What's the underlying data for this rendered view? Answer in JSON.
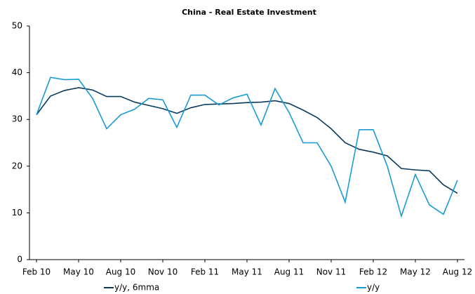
{
  "chart_data": {
    "type": "line",
    "title": "China - Real Estate Investment",
    "categories": [
      "Feb 10",
      null,
      null,
      "May 10",
      null,
      null,
      "Aug 10",
      null,
      null,
      "Nov 10",
      null,
      null,
      "Feb 11",
      null,
      null,
      "May 11",
      null,
      null,
      "Aug 11",
      null,
      null,
      "Nov 11",
      null,
      null,
      "Feb 12",
      null,
      null,
      "May 12",
      null,
      null,
      "Aug 12"
    ],
    "series": [
      {
        "name": "y/y, 6mma",
        "color": "#0b3a5c",
        "values": [
          31,
          35,
          36.2,
          36.8,
          36.3,
          34.9,
          34.9,
          33.7,
          33,
          32.3,
          31.3,
          32.5,
          33.2,
          33.3,
          33.4,
          33.6,
          33.7,
          34,
          33.4,
          32,
          30.4,
          28,
          25,
          23.6,
          23,
          22.2,
          19.5,
          19.2,
          19,
          16,
          14.2
        ]
      },
      {
        "name": "y/y",
        "color": "#1a9ad6",
        "values": [
          31,
          39,
          38.5,
          38.6,
          34.5,
          28,
          31,
          32.2,
          34.5,
          34.2,
          28.3,
          35.2,
          35.2,
          33.1,
          34.6,
          35.4,
          28.8,
          36.6,
          31.5,
          25,
          25,
          20,
          12.3,
          27.8,
          27.8,
          20,
          9.3,
          18.2,
          11.7,
          9.7,
          17
        ]
      }
    ],
    "ylim": [
      0,
      50
    ],
    "yticks": [
      0,
      10,
      20,
      30,
      40,
      50
    ],
    "grid": false,
    "legend": "bottom"
  }
}
